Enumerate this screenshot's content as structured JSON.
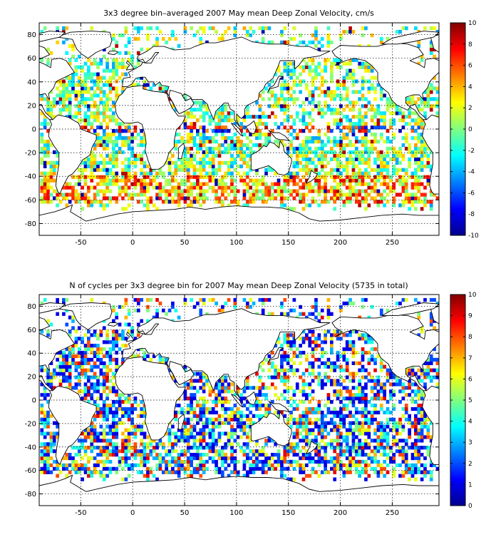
{
  "colormap": "jet",
  "chart_data": [
    {
      "type": "heatmap",
      "title": "3x3 degree bin–averaged 2007 May mean Deep Zonal Velocity, cm/s",
      "xlabel": "",
      "ylabel": "",
      "xlim": [
        -90,
        295
      ],
      "ylim": [
        -90,
        90
      ],
      "xticks": [
        -50,
        0,
        50,
        100,
        150,
        200,
        250
      ],
      "yticks": [
        80,
        60,
        40,
        20,
        0,
        -20,
        -40,
        -60,
        -80
      ],
      "grid": true,
      "bin_size_deg": 3,
      "colorbar": {
        "min": -10,
        "max": 10,
        "ticks": [
          10,
          8,
          6,
          4,
          2,
          0,
          -2,
          -4,
          -6,
          -8,
          -10
        ],
        "placement": "right"
      },
      "field": "zonal_velocity_cm_s"
    },
    {
      "type": "heatmap",
      "title": "N of cycles per 3x3 degree bin for 2007 May mean Deep Zonal Velocity (5735 in total)",
      "xlabel": "",
      "ylabel": "",
      "xlim": [
        -90,
        295
      ],
      "ylim": [
        -90,
        90
      ],
      "xticks": [
        -50,
        0,
        50,
        100,
        150,
        200,
        250
      ],
      "yticks": [
        80,
        60,
        40,
        20,
        0,
        -20,
        -40,
        -60,
        -80
      ],
      "grid": true,
      "bin_size_deg": 3,
      "total_cycles": 5735,
      "colorbar": {
        "min": 0,
        "max": 10,
        "ticks": [
          10,
          9,
          8,
          7,
          6,
          5,
          4,
          3,
          2,
          1,
          0
        ],
        "placement": "right"
      },
      "field": "cycles_per_bin"
    }
  ]
}
